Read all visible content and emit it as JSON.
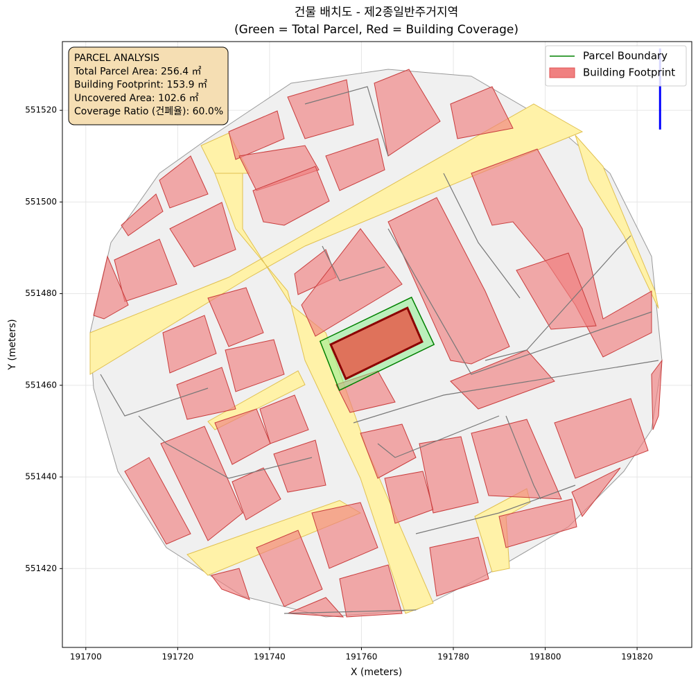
{
  "chart_data": {
    "type": "map",
    "title": "건물 배치도 - 제2종일반주거지역",
    "subtitle": "(Green = Total Parcel, Red = Building Coverage)",
    "xlabel": "X (meters)",
    "ylabel": "Y (meters)",
    "annotation": [
      "PARCEL ANALYSIS",
      "Total Parcel Area: 256.4 ㎡",
      "Building Footprint: 153.9 ㎡",
      "Uncovered Area: 102.6 ㎡",
      "Coverage Ratio (건폐율): 60.0%"
    ],
    "xlim": [
      191694.9,
      191831.9
    ],
    "ylim": [
      551402.8,
      551535.0
    ],
    "xticks": [
      191700,
      191720,
      191740,
      191760,
      191780,
      191800,
      191820
    ],
    "yticks": [
      551420,
      551440,
      551460,
      551480,
      551500,
      551520
    ],
    "grid": true,
    "legend": "upper right",
    "series": [
      {
        "name": "Parcel Boundary",
        "color": "#008000",
        "fill": "#90ee90",
        "x": [
          191751.0,
          191770.9,
          191775.8,
          191755.2
        ],
        "y": [
          551469.6,
          551479.2,
          551468.9,
          551458.9
        ]
      },
      {
        "name": "Building Footprint",
        "color": "#f08080",
        "edgecolor": "#8b0000",
        "fill": "#e06a55",
        "x": [
          191753.3,
          191770.0,
          191773.2,
          191756.6
        ],
        "y": [
          551468.9,
          551476.9,
          551469.5,
          551461.4
        ]
      }
    ],
    "arrow": {
      "color": "#0000ff",
      "x": [
        191825.0,
        191825.0
      ],
      "y": [
        551533.5,
        551515.8
      ]
    }
  }
}
